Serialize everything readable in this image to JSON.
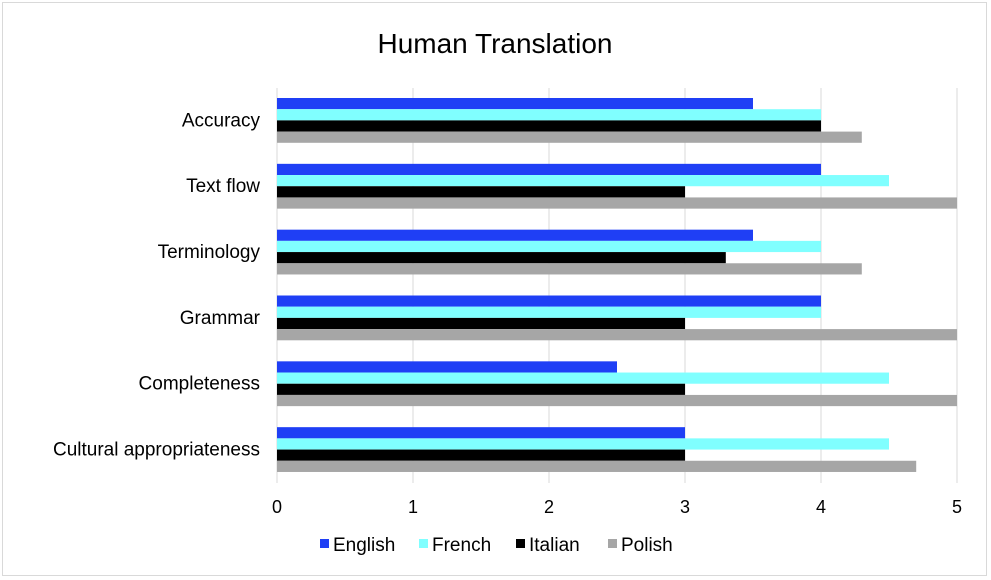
{
  "chart_data": {
    "type": "bar",
    "orientation": "horizontal",
    "title": "Human Translation",
    "categories": [
      "Accuracy",
      "Text flow",
      "Terminology",
      "Grammar",
      "Completeness",
      "Cultural appropriateness"
    ],
    "series": [
      {
        "name": "English",
        "color": "#1f3ff5",
        "values": [
          3.5,
          4,
          3.5,
          4,
          2.5,
          3
        ]
      },
      {
        "name": "French",
        "color": "#80ffff",
        "values": [
          4,
          4.5,
          4,
          4,
          4.5,
          4.5
        ]
      },
      {
        "name": "Italian",
        "color": "#000000",
        "values": [
          4,
          3,
          3.3,
          3,
          3,
          3
        ]
      },
      {
        "name": "Polish",
        "color": "#a6a6a6",
        "values": [
          4.3,
          5,
          4.3,
          5,
          5,
          4.7
        ]
      }
    ],
    "xlim": [
      0,
      5
    ],
    "xticks": [
      "0",
      "1",
      "2",
      "3",
      "4",
      "5"
    ],
    "grid": true,
    "legend_position": "bottom"
  }
}
